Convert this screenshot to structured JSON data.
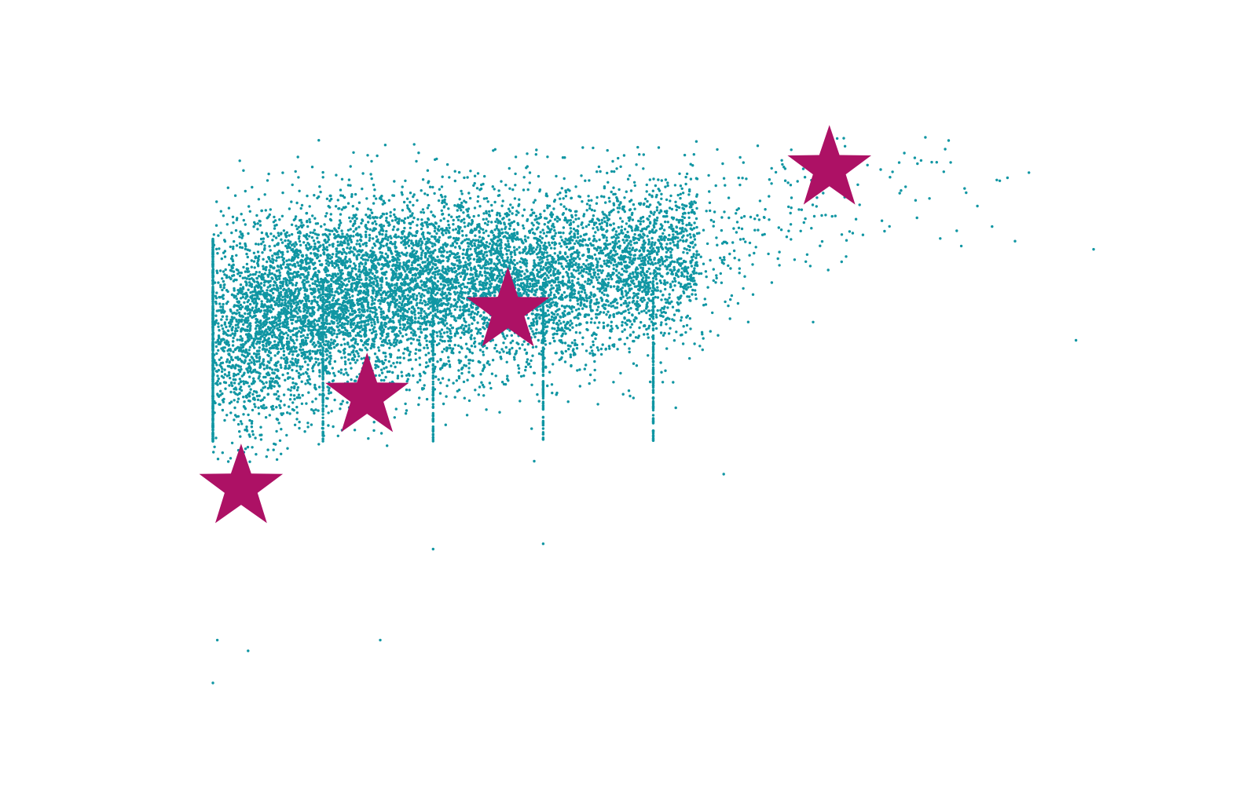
{
  "chart_data": {
    "type": "scatter",
    "title": "",
    "xlabel": "",
    "ylabel": "",
    "axes_visible": false,
    "grid": false,
    "legend": "none",
    "colors": {
      "background": "#ffffff",
      "points": "#1096a3",
      "stars": "#ad1165"
    },
    "xlim": [
      0,
      1
    ],
    "ylim": [
      0,
      1
    ],
    "series": [
      {
        "role": "dense-point-cloud",
        "marker": "circle",
        "color": "#1096a3",
        "n_points": 9000,
        "stripes_x": [
          0.0,
          0.125,
          0.25,
          0.375,
          0.5
        ],
        "outliers": [
          {
            "x": 0.0,
            "y": 0.0
          },
          {
            "x": 0.005,
            "y": 0.08
          },
          {
            "x": 0.04,
            "y": 0.06
          },
          {
            "x": 0.19,
            "y": 0.08
          },
          {
            "x": 0.25,
            "y": 0.25
          },
          {
            "x": 0.375,
            "y": 0.26
          },
          {
            "x": 0.58,
            "y": 0.39
          },
          {
            "x": 0.42,
            "y": 1.0
          },
          {
            "x": 0.46,
            "y": 0.98
          },
          {
            "x": 0.8,
            "y": 0.97
          },
          {
            "x": 1.0,
            "y": 0.81
          },
          {
            "x": 0.98,
            "y": 0.64
          }
        ]
      },
      {
        "role": "highlighted",
        "marker": "star",
        "color": "#ad1165",
        "points": [
          {
            "x": 0.032,
            "y": 0.365
          },
          {
            "x": 0.175,
            "y": 0.535
          },
          {
            "x": 0.335,
            "y": 0.695
          },
          {
            "x": 0.7,
            "y": 0.96
          }
        ]
      }
    ]
  }
}
